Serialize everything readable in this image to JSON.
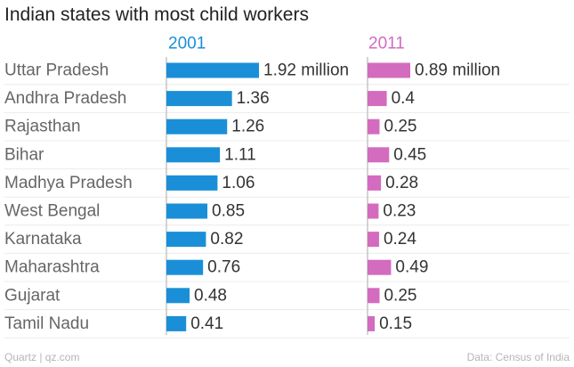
{
  "footer": {
    "source_credit": "Quartz | qz.com",
    "data_credit": "Data: Census of India"
  },
  "colors": {
    "series_2001": "#1a8fd8",
    "series_2011": "#d36bbf",
    "text": "#333333",
    "label": "#666666",
    "footer": "#b5b5b5"
  },
  "chart_data": {
    "type": "bar",
    "orientation": "horizontal",
    "title": "Indian states with most child workers",
    "categories": [
      "Uttar Pradesh",
      "Andhra Pradesh",
      "Rajasthan",
      "Bihar",
      "Madhya Pradesh",
      "West Bengal",
      "Karnataka",
      "Maharashtra",
      "Gujarat",
      "Tamil Nadu"
    ],
    "series": [
      {
        "name": "2001",
        "values": [
          1.92,
          1.36,
          1.26,
          1.11,
          1.06,
          0.85,
          0.82,
          0.76,
          0.48,
          0.41
        ],
        "labels": [
          "1.92 million",
          "1.36",
          "1.26",
          "1.11",
          "1.06",
          "0.85",
          "0.82",
          "0.76",
          "0.48",
          "0.41"
        ]
      },
      {
        "name": "2011",
        "values": [
          0.89,
          0.4,
          0.25,
          0.45,
          0.28,
          0.23,
          0.24,
          0.49,
          0.25,
          0.15
        ],
        "labels": [
          "0.89 million",
          "0.4",
          "0.25",
          "0.45",
          "0.28",
          "0.23",
          "0.24",
          "0.49",
          "0.25",
          "0.15"
        ]
      }
    ],
    "unit": "million",
    "xlim": [
      0,
      1.92
    ],
    "xlabel": "",
    "ylabel": ""
  }
}
